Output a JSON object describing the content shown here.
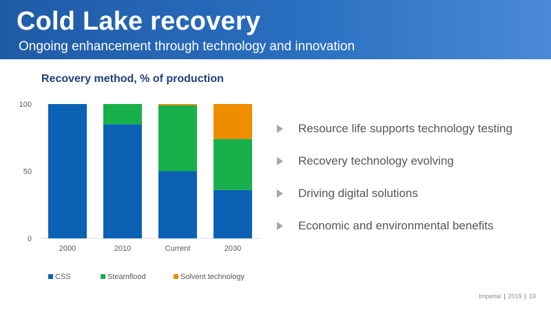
{
  "header": {
    "title": "Cold Lake recovery",
    "subtitle": "Ongoing enhancement through technology and innovation"
  },
  "bullets": [
    {
      "icon": "triangle-right-icon",
      "text": "Resource life supports technology testing"
    },
    {
      "icon": "triangle-right-icon",
      "text": "Recovery technology evolving"
    },
    {
      "icon": "triangle-right-icon",
      "text": "Driving digital solutions"
    },
    {
      "icon": "triangle-right-icon",
      "text": "Economic and environmental benefits"
    }
  ],
  "footer": {
    "company": "Imperial",
    "year": "2019",
    "page": "19"
  },
  "chart_data": {
    "type": "bar",
    "stacked": true,
    "title": "Recovery method, % of production",
    "xlabel": "",
    "ylabel": "",
    "categories": [
      "2000",
      "2010",
      "Current",
      "2030"
    ],
    "ylim": [
      0,
      100
    ],
    "yticks": [
      0,
      50,
      100
    ],
    "grid": false,
    "legend": "bottom",
    "series": [
      {
        "name": "CSS",
        "color": "#0b62b4",
        "values": [
          100,
          85,
          50,
          36
        ]
      },
      {
        "name": "Steamflood",
        "color": "#18b04a",
        "values": [
          0,
          15,
          49,
          38
        ]
      },
      {
        "name": "Solvent technology",
        "color": "#ef8c00",
        "values": [
          0,
          0,
          1,
          26
        ]
      }
    ]
  }
}
